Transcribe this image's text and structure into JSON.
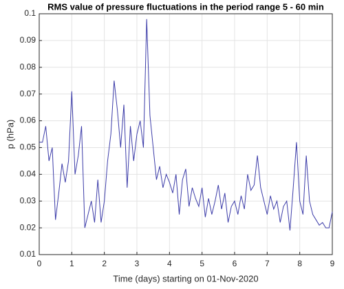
{
  "chart_data": {
    "type": "line",
    "title": "RMS value of pressure fluctuations in the period range 5 - 60 min",
    "x_label": "Time (days) starting on 01-Nov-2020",
    "y_label": "p (hPa)",
    "x": [
      0,
      0.1,
      0.2,
      0.3,
      0.4,
      0.5,
      0.6,
      0.7,
      0.8,
      0.9,
      1,
      1.1,
      1.2,
      1.3,
      1.4,
      1.5,
      1.6,
      1.7,
      1.8,
      1.9,
      2,
      2.1,
      2.2,
      2.3,
      2.4,
      2.5,
      2.6,
      2.7,
      2.8,
      2.9,
      3,
      3.1,
      3.2,
      3.3,
      3.4,
      3.5,
      3.6,
      3.7,
      3.8,
      3.9,
      4,
      4.1,
      4.2,
      4.3,
      4.4,
      4.5,
      4.6,
      4.7,
      4.8,
      4.9,
      5,
      5.1,
      5.2,
      5.3,
      5.4,
      5.5,
      5.6,
      5.7,
      5.8,
      5.9,
      6,
      6.1,
      6.2,
      6.3,
      6.4,
      6.5,
      6.6,
      6.7,
      6.8,
      6.9,
      7,
      7.1,
      7.2,
      7.3,
      7.4,
      7.5,
      7.6,
      7.7,
      7.8,
      7.9,
      8,
      8.1,
      8.2,
      8.3,
      8.4,
      8.5,
      8.6,
      8.7,
      8.8,
      8.9,
      9
    ],
    "series": [
      {
        "name": "p",
        "color": "#3b3ba8",
        "values": [
          0.052,
          0.052,
          0.058,
          0.045,
          0.05,
          0.023,
          0.033,
          0.044,
          0.037,
          0.045,
          0.071,
          0.04,
          0.047,
          0.058,
          0.02,
          0.025,
          0.03,
          0.022,
          0.038,
          0.022,
          0.03,
          0.045,
          0.055,
          0.075,
          0.064,
          0.05,
          0.066,
          0.035,
          0.058,
          0.045,
          0.055,
          0.06,
          0.05,
          0.098,
          0.062,
          0.05,
          0.038,
          0.043,
          0.035,
          0.04,
          0.037,
          0.033,
          0.04,
          0.025,
          0.038,
          0.042,
          0.028,
          0.035,
          0.031,
          0.028,
          0.035,
          0.024,
          0.031,
          0.025,
          0.03,
          0.036,
          0.027,
          0.033,
          0.022,
          0.028,
          0.03,
          0.025,
          0.032,
          0.027,
          0.04,
          0.034,
          0.036,
          0.047,
          0.035,
          0.03,
          0.025,
          0.032,
          0.027,
          0.03,
          0.022,
          0.028,
          0.03,
          0.019,
          0.035,
          0.052,
          0.03,
          0.025,
          0.047,
          0.03,
          0.025,
          0.023,
          0.021,
          0.022,
          0.02,
          0.02,
          0.026
        ]
      }
    ],
    "xlim": [
      0,
      9
    ],
    "xticks": [
      0,
      1,
      2,
      3,
      4,
      5,
      6,
      7,
      8,
      9
    ],
    "ylim": [
      0.01,
      0.1
    ],
    "yticks": [
      0.01,
      0.02,
      0.03,
      0.04,
      0.05,
      0.06,
      0.07,
      0.08,
      0.09,
      0.1
    ],
    "grid": true
  }
}
